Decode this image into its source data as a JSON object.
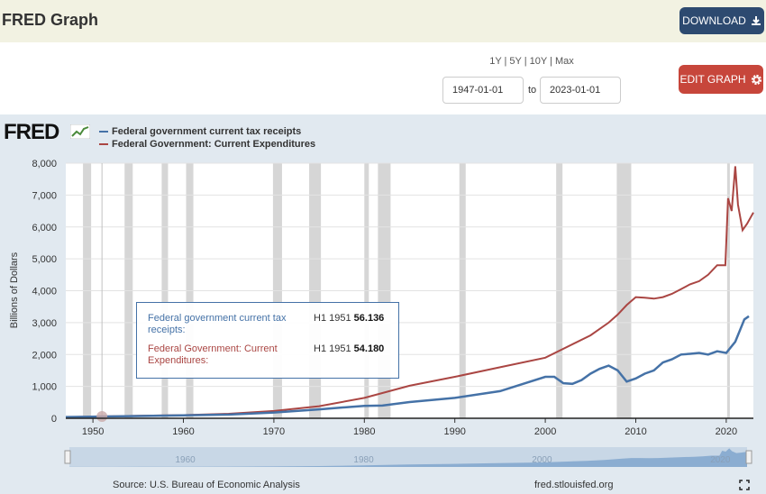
{
  "header": {
    "title": "FRED Graph",
    "download_label": "DOWNLOAD",
    "edit_label": "EDIT GRAPH"
  },
  "controls": {
    "range_links": "1Y | 5Y | 10Y | Max",
    "start_date": "1947-01-01",
    "to_label": "to",
    "end_date": "2023-01-01"
  },
  "logo_text": "FRED",
  "tooltip": {
    "s1_name": "Federal government current tax receipts:",
    "s1_period": "H1 1951",
    "s1_value": "56.136",
    "s2_name": "Federal Government: Current Expenditures:",
    "s2_period": "H1 1951",
    "s2_value": "54.180"
  },
  "footer": {
    "source": "Source: U.S. Bureau of Economic Analysis",
    "url": "fred.stlouisfed.org"
  },
  "colors": {
    "receipts": "#4572a7",
    "expenditures": "#aa4643",
    "recession": "#d6d6d6",
    "topbar": "#f2f2e2",
    "chart_bg": "#e1e9f0"
  },
  "chart_data": {
    "type": "line",
    "title": "",
    "xlabel": "",
    "ylabel": "Billions of Dollars",
    "xlim": [
      1947,
      2023
    ],
    "ylim": [
      0,
      8000
    ],
    "y_ticks": [
      "0",
      "1,000",
      "2,000",
      "3,000",
      "4,000",
      "5,000",
      "6,000",
      "7,000",
      "8,000"
    ],
    "x_ticks": [
      "1950",
      "1960",
      "1970",
      "1980",
      "1990",
      "2000",
      "2010",
      "2020"
    ],
    "navigator_ticks": [
      "1960",
      "1980",
      "2000",
      "2020"
    ],
    "recessions": [
      [
        1948.9,
        1949.8
      ],
      [
        1953.5,
        1954.4
      ],
      [
        1957.6,
        1958.3
      ],
      [
        1960.3,
        1961.1
      ],
      [
        1969.9,
        1970.9
      ],
      [
        1973.9,
        1975.2
      ],
      [
        1980.0,
        1980.5
      ],
      [
        1981.5,
        1982.9
      ],
      [
        1990.5,
        1991.2
      ],
      [
        2001.2,
        2001.9
      ],
      [
        2007.9,
        2009.5
      ],
      [
        2020.1,
        2020.4
      ]
    ],
    "crosshair_x": 1951,
    "series": [
      {
        "name": "Federal government current tax receipts",
        "x": [
          1947,
          1950,
          1951,
          1955,
          1960,
          1965,
          1970,
          1975,
          1980,
          1982,
          1985,
          1990,
          1995,
          2000,
          2001,
          2002,
          2003,
          2004,
          2005,
          2006,
          2007,
          2008,
          2009,
          2010,
          2011,
          2012,
          2013,
          2014,
          2015,
          2016,
          2017,
          2018,
          2019,
          2020,
          2021,
          2022,
          2022.5
        ],
        "values": [
          40,
          50,
          56,
          70,
          90,
          115,
          180,
          280,
          390,
          400,
          510,
          640,
          850,
          1300,
          1300,
          1100,
          1080,
          1200,
          1400,
          1550,
          1650,
          1500,
          1150,
          1250,
          1400,
          1500,
          1750,
          1850,
          2000,
          2020,
          2050,
          2000,
          2100,
          2050,
          2400,
          3100,
          3200
        ]
      },
      {
        "name": "Federal Government: Current Expenditures",
        "x": [
          1947,
          1950,
          1951,
          1955,
          1960,
          1965,
          1970,
          1975,
          1980,
          1985,
          1990,
          1995,
          2000,
          2005,
          2007,
          2008,
          2009,
          2010,
          2011,
          2012,
          2013,
          2014,
          2015,
          2016,
          2017,
          2018,
          2019,
          2019.9,
          2020.2,
          2020.6,
          2021.0,
          2021.3,
          2021.8,
          2022.3,
          2023.0
        ],
        "values": [
          40,
          50,
          54,
          75,
          100,
          140,
          230,
          380,
          640,
          1020,
          1300,
          1600,
          1900,
          2600,
          3000,
          3250,
          3550,
          3800,
          3780,
          3750,
          3800,
          3900,
          4050,
          4200,
          4300,
          4500,
          4800,
          4800,
          6900,
          6500,
          7900,
          6700,
          5900,
          6100,
          6450
        ]
      }
    ]
  }
}
